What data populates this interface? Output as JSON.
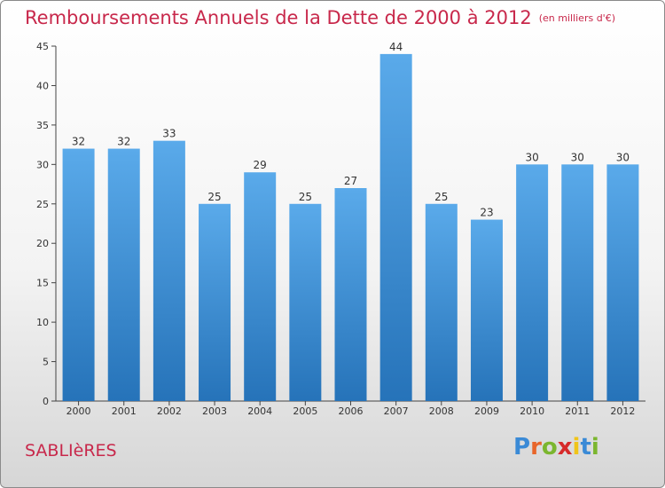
{
  "header": {
    "title": "Remboursements Annuels de la Dette de 2000 à 2012",
    "unit": "(en milliers d'€)"
  },
  "footer": {
    "city": "SABLIèRES",
    "logo": {
      "letters": [
        "P",
        "r",
        "o",
        "x",
        "i",
        "t",
        "i"
      ],
      "colors": [
        "#3a8ad6",
        "#e8662a",
        "#7bb62f",
        "#d62a2a",
        "#f0c419",
        "#3a8ad6",
        "#7bb62f"
      ]
    }
  },
  "chart_data": {
    "type": "bar",
    "categories": [
      "2000",
      "2001",
      "2002",
      "2003",
      "2004",
      "2005",
      "2006",
      "2007",
      "2008",
      "2009",
      "2010",
      "2011",
      "2012"
    ],
    "values": [
      32,
      32,
      33,
      25,
      29,
      25,
      27,
      44,
      25,
      23,
      30,
      30,
      30
    ],
    "title": "Remboursements Annuels de la Dette de 2000 à 2012",
    "subtitle": "(en milliers d'€)",
    "ylim": [
      0,
      45
    ],
    "yticks": [
      0,
      5,
      10,
      15,
      20,
      25,
      30,
      35,
      40,
      45
    ],
    "grid": false,
    "bar_color": "#3d8fd8"
  }
}
